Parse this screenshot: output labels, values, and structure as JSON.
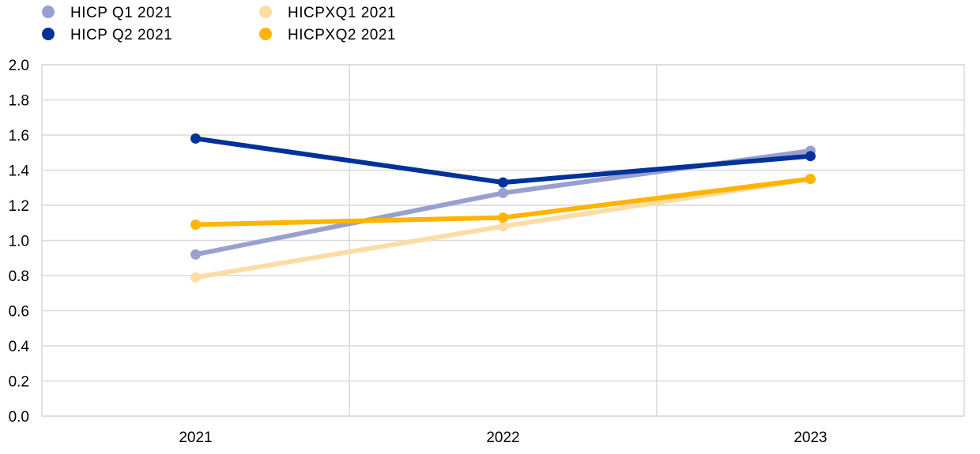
{
  "chart_data": {
    "type": "line",
    "title": "",
    "xlabel": "",
    "ylabel": "",
    "categories": [
      "2021",
      "2022",
      "2023"
    ],
    "ylim": [
      0,
      2.0
    ],
    "yticks": [
      "0.0",
      "0.2",
      "0.4",
      "0.6",
      "0.8",
      "1.0",
      "1.2",
      "1.4",
      "1.6",
      "1.8",
      "2.0"
    ],
    "grid": true,
    "legend_position": "top-left",
    "series": [
      {
        "name": "HICP Q1 2021",
        "color": "#98a0cf",
        "values": [
          0.92,
          1.27,
          1.51
        ]
      },
      {
        "name": "HICP Q2 2021",
        "color": "#003299",
        "values": [
          1.58,
          1.33,
          1.48
        ]
      },
      {
        "name": "HICPXQ1 2021",
        "color": "#fddca5",
        "values": [
          0.79,
          1.08,
          1.35
        ]
      },
      {
        "name": "HICPXQ2 2021",
        "color": "#ffb400",
        "values": [
          1.09,
          1.13,
          1.35
        ]
      }
    ]
  }
}
